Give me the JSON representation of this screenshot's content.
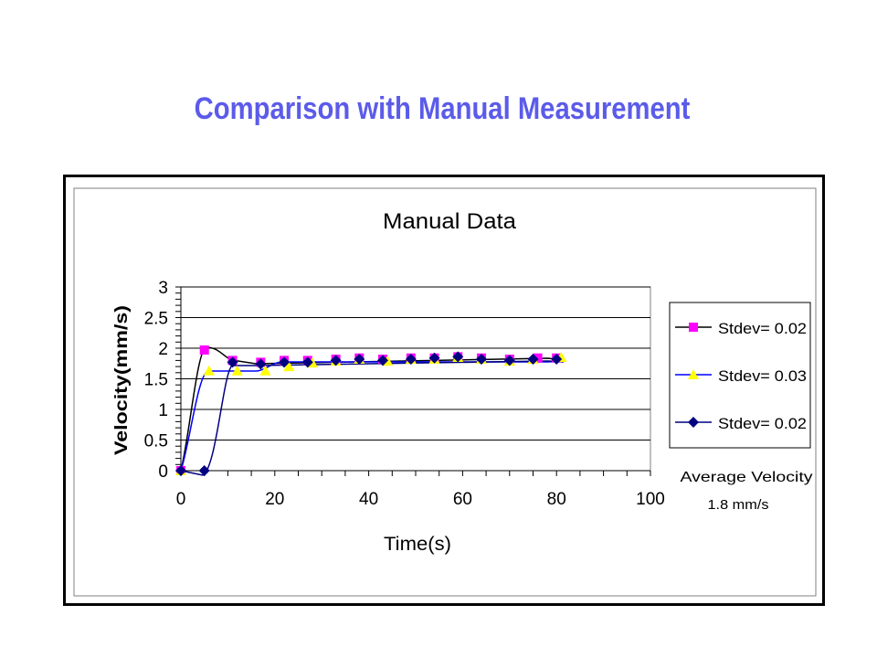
{
  "slide": {
    "title": "Comparison with Manual Measurement"
  },
  "colors": {
    "title": "#5b5bea",
    "series1_marker": "#ff00ff",
    "series2_marker": "#ffff00",
    "series3_marker": "#000080",
    "line_black": "#000000",
    "line_blue": "#0000ff",
    "line_navy": "#000080"
  },
  "chart_data": {
    "type": "scatter",
    "title": "Manual Data",
    "xlabel": "Time(s)",
    "ylabel": "Velocity(mm/s)",
    "xlim": [
      0,
      100
    ],
    "ylim": [
      0,
      3
    ],
    "xticks": [
      "0",
      "20",
      "40",
      "60",
      "80",
      "100"
    ],
    "yticks": [
      "0",
      "0.5",
      "1",
      "1.5",
      "2",
      "2.5",
      "3"
    ],
    "grid": "horizontal major",
    "legend_position": "right",
    "series": [
      {
        "name": "Stdev= 0.02",
        "marker": "square",
        "x": [
          0,
          5,
          11,
          17,
          22,
          27,
          33,
          38,
          43,
          49,
          54,
          59,
          64,
          70,
          76,
          80
        ],
        "y": [
          0,
          1.97,
          1.8,
          1.77,
          1.8,
          1.8,
          1.82,
          1.84,
          1.82,
          1.84,
          1.84,
          1.86,
          1.84,
          1.82,
          1.84,
          1.84
        ]
      },
      {
        "name": "Stdev= 0.03",
        "marker": "triangle",
        "x": [
          0,
          6,
          12,
          18,
          23,
          28,
          33,
          38,
          44,
          49,
          54,
          59,
          64,
          70,
          75,
          81
        ],
        "y": [
          0,
          1.63,
          1.63,
          1.63,
          1.7,
          1.76,
          1.79,
          1.82,
          1.79,
          1.82,
          1.82,
          1.85,
          1.82,
          1.79,
          1.82,
          1.85
        ]
      },
      {
        "name": "Stdev= 0.02",
        "marker": "diamond",
        "x": [
          0,
          5,
          11,
          17,
          22,
          27,
          33,
          38,
          43,
          49,
          54,
          59,
          64,
          70,
          75,
          80
        ],
        "y": [
          0,
          0,
          1.77,
          1.74,
          1.77,
          1.77,
          1.8,
          1.82,
          1.8,
          1.82,
          1.84,
          1.86,
          1.82,
          1.8,
          1.82,
          1.82
        ]
      }
    ],
    "annotations": [
      {
        "text": "Average Velocity"
      },
      {
        "text": "1.8 mm/s"
      }
    ]
  }
}
